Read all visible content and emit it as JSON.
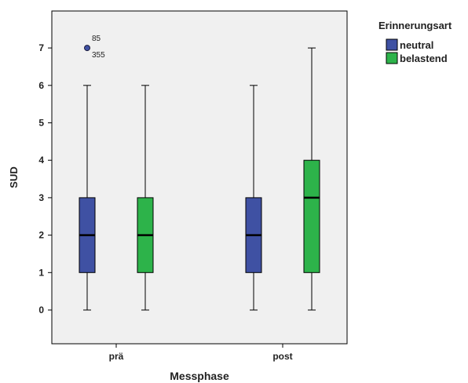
{
  "chart_data": {
    "type": "boxplot",
    "xlabel": "Messphase",
    "ylabel": "SUD",
    "ylim": [
      -0.9,
      7.9
    ],
    "yticks": [
      0,
      1,
      2,
      3,
      4,
      5,
      6,
      7
    ],
    "categories": [
      "prä",
      "post"
    ],
    "legend": {
      "title": "Erinnerungsart",
      "placement": "top-right-outside"
    },
    "grid": false,
    "series": [
      {
        "name": "neutral",
        "color": "#3f51a3",
        "boxes": [
          {
            "category": "prä",
            "min": 0,
            "q1": 1,
            "median": 2,
            "q3": 3,
            "max": 6
          },
          {
            "category": "post",
            "min": 0,
            "q1": 1,
            "median": 2,
            "q3": 3,
            "max": 6
          }
        ]
      },
      {
        "name": "belastend",
        "color": "#2db34a",
        "boxes": [
          {
            "category": "prä",
            "min": 0,
            "q1": 1,
            "median": 2,
            "q3": 3,
            "max": 6
          },
          {
            "category": "post",
            "min": 0,
            "q1": 1,
            "median": 3,
            "q3": 4,
            "max": 7
          }
        ]
      }
    ],
    "outliers": [
      {
        "series": "neutral",
        "category": "prä",
        "value": 7,
        "labels": [
          "85",
          "355"
        ]
      }
    ]
  }
}
